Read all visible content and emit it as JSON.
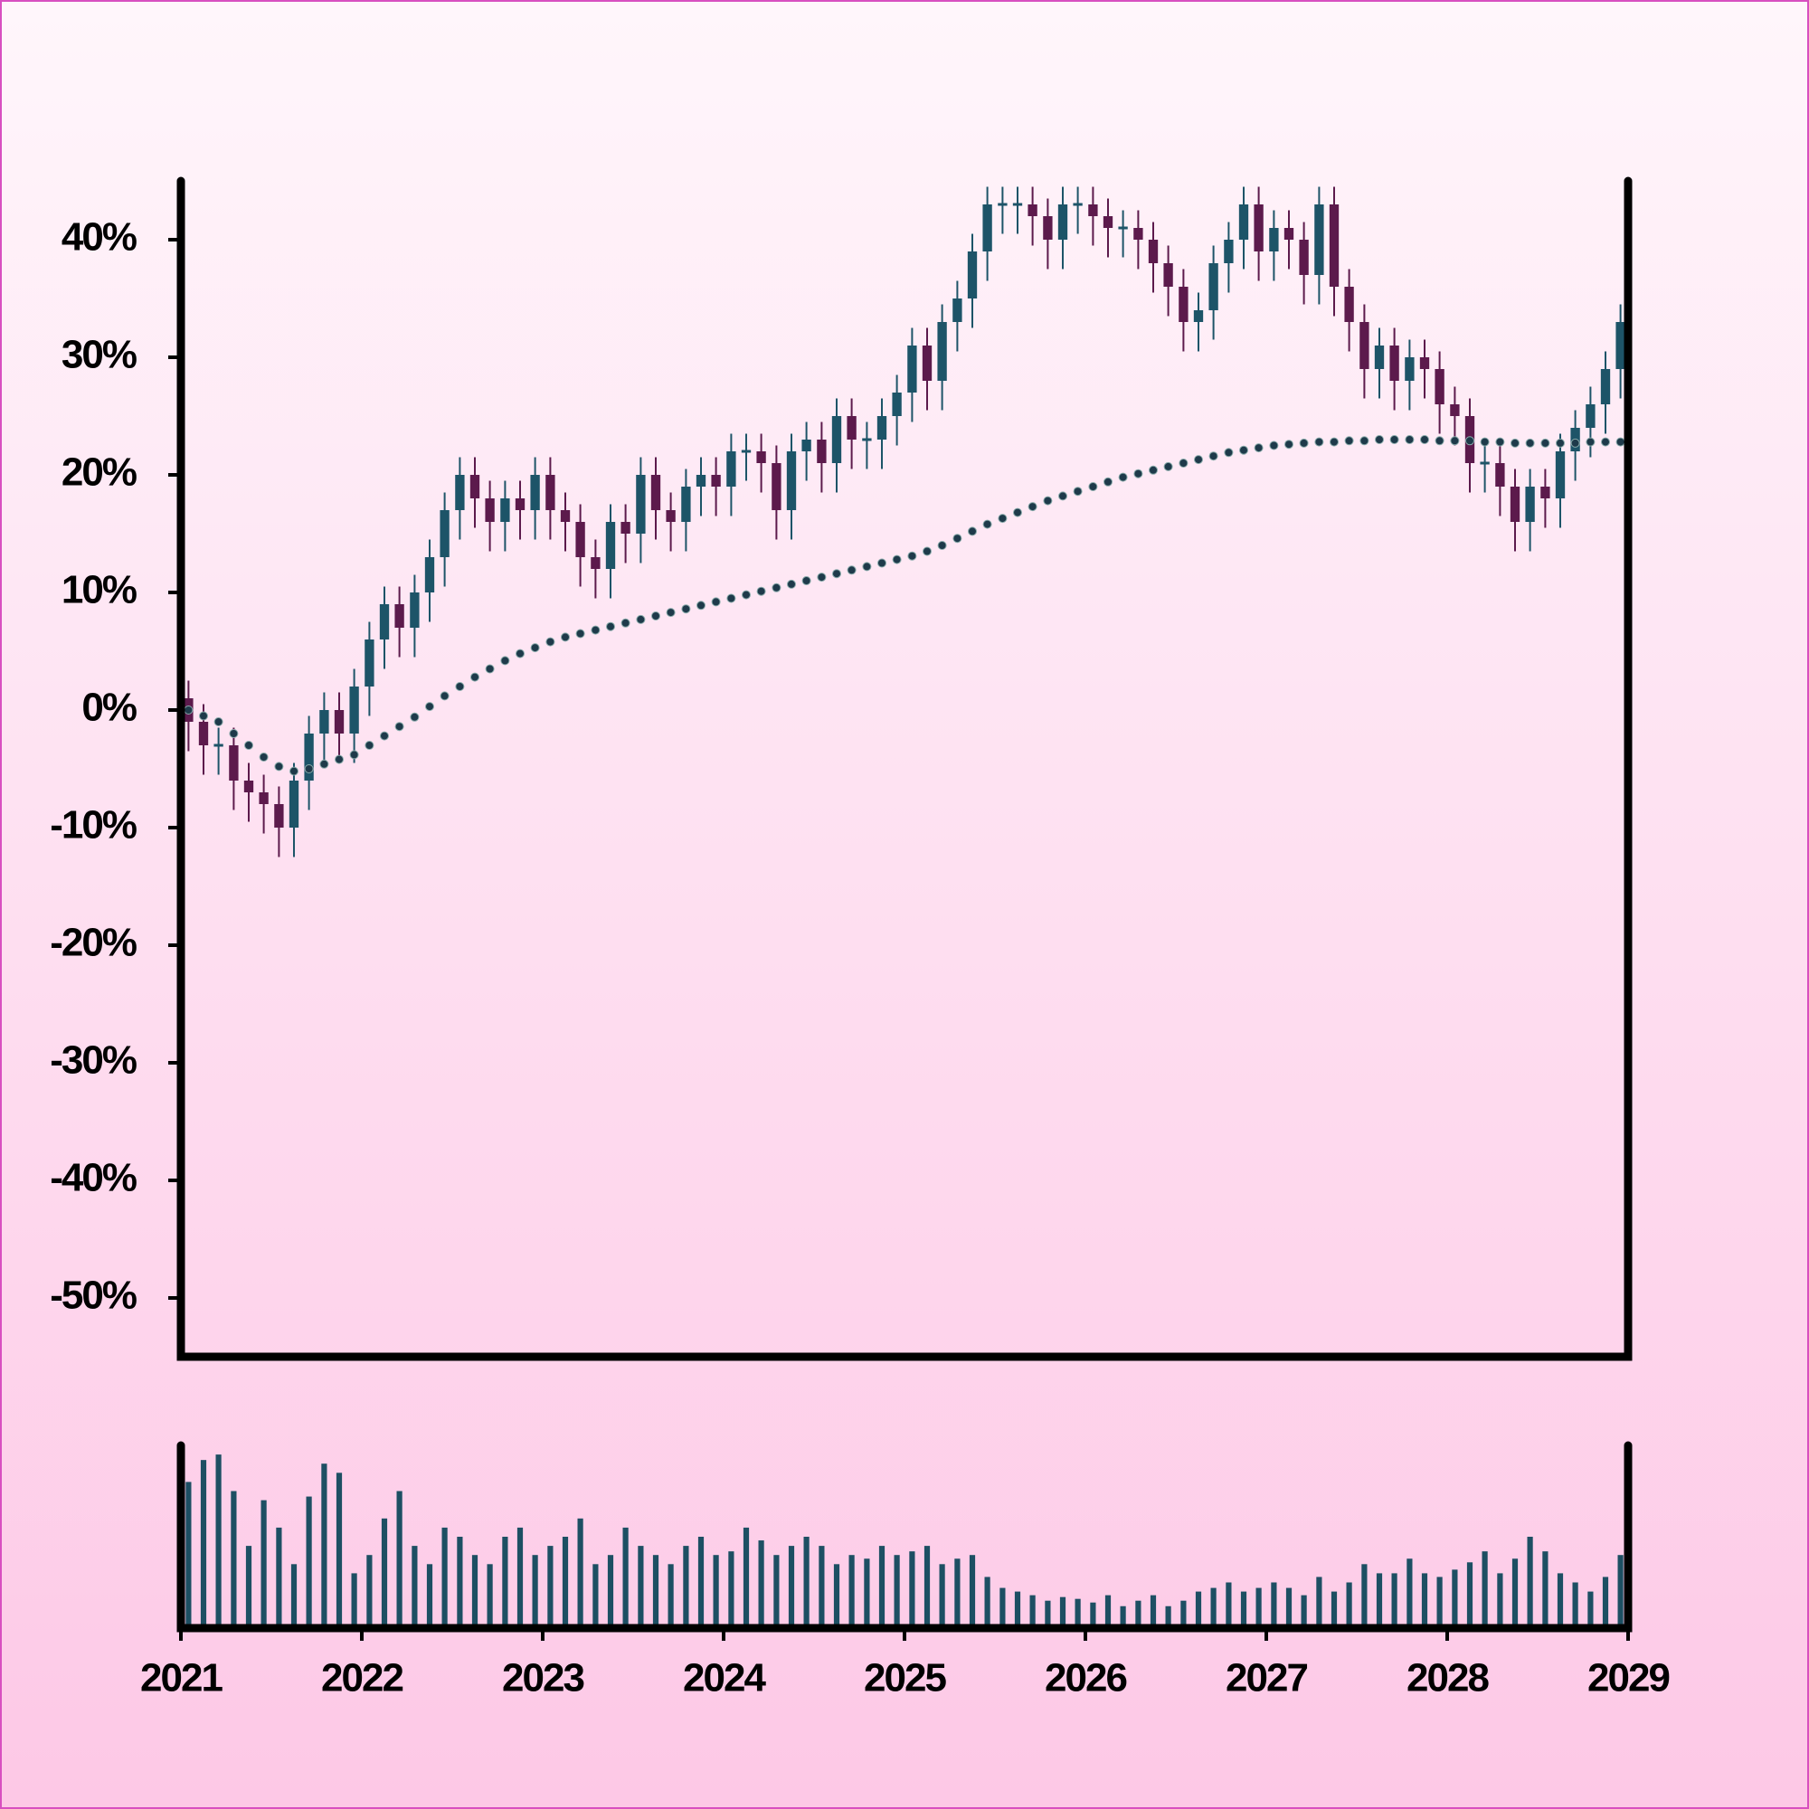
{
  "chart_data": {
    "type": "candlestick",
    "x": [
      2021.042,
      2021.125,
      2021.208,
      2021.292,
      2021.375,
      2021.458,
      2021.542,
      2021.625,
      2021.708,
      2021.792,
      2021.875,
      2021.958,
      2022.042,
      2022.125,
      2022.208,
      2022.292,
      2022.375,
      2022.458,
      2022.542,
      2022.625,
      2022.708,
      2022.792,
      2022.875,
      2022.958,
      2023.042,
      2023.125,
      2023.208,
      2023.292,
      2023.375,
      2023.458,
      2023.542,
      2023.625,
      2023.708,
      2023.792,
      2023.875,
      2023.958,
      2024.042,
      2024.125,
      2024.208,
      2024.292,
      2024.375,
      2024.458,
      2024.542,
      2024.625,
      2024.708,
      2024.792,
      2024.875,
      2024.958,
      2025.042,
      2025.125,
      2025.208,
      2025.292,
      2025.375,
      2025.458,
      2025.542,
      2025.625,
      2025.708,
      2025.792,
      2025.875,
      2025.958,
      2026.042,
      2026.125,
      2026.208,
      2026.292,
      2026.375,
      2026.458,
      2026.542,
      2026.625,
      2026.708,
      2026.792,
      2026.875,
      2026.958,
      2027.042,
      2027.125,
      2027.208,
      2027.292,
      2027.375,
      2027.458,
      2027.542,
      2027.625,
      2027.708,
      2027.792,
      2027.875,
      2027.958,
      2028.042,
      2028.125,
      2028.208,
      2028.292,
      2028.375,
      2028.458,
      2028.542,
      2028.625,
      2028.708,
      2028.792,
      2028.875,
      2028.958
    ],
    "open": [
      1,
      -1,
      -3,
      -3,
      -6,
      -7,
      -8,
      -10,
      -6,
      -2,
      0,
      -2,
      2,
      6,
      9,
      7,
      10,
      13,
      17,
      20,
      18,
      16,
      18,
      17,
      20,
      17,
      16,
      13,
      12,
      16,
      15,
      20,
      17,
      16,
      19,
      20,
      19,
      22,
      22,
      21,
      17,
      22,
      23,
      21,
      25,
      23,
      23,
      25,
      27,
      31,
      28,
      33,
      35,
      39,
      43,
      43,
      43,
      42,
      40,
      43,
      43,
      42,
      41,
      41,
      40,
      38,
      36,
      33,
      34,
      38,
      40,
      43,
      39,
      41,
      40,
      37,
      43,
      36,
      33,
      29,
      31,
      28,
      30,
      29,
      26,
      25,
      21,
      21,
      19,
      16,
      19,
      18,
      22,
      24,
      26,
      29
    ],
    "high": [
      2.5,
      0.5,
      -1.5,
      -1.5,
      -4.5,
      -5.5,
      -6.5,
      -4.5,
      -0.5,
      1.5,
      1.5,
      3.5,
      7.5,
      10.5,
      10.5,
      11.5,
      14.5,
      18.5,
      21.5,
      21.5,
      19.5,
      19.5,
      19.5,
      21.5,
      21.5,
      18.5,
      17.5,
      14.5,
      17.5,
      17.5,
      21.5,
      21.5,
      18.5,
      20.5,
      21.5,
      21.5,
      23.5,
      23.5,
      23.5,
      22.5,
      23.5,
      24.5,
      24.5,
      26.5,
      26.5,
      24.5,
      26.5,
      28.5,
      32.5,
      32.5,
      34.5,
      36.5,
      40.5,
      44.5,
      44.5,
      44.5,
      44.5,
      43.5,
      44.5,
      44.5,
      44.5,
      43.5,
      42.5,
      42.5,
      41.5,
      39.5,
      37.5,
      35.5,
      39.5,
      41.5,
      44.5,
      44.5,
      42.5,
      42.5,
      41.5,
      44.5,
      44.5,
      37.5,
      34.5,
      32.5,
      32.5,
      31.5,
      31.5,
      30.5,
      27.5,
      26.5,
      22.5,
      22.5,
      20.5,
      20.5,
      20.5,
      23.5,
      25.5,
      27.5,
      30.5,
      34.5
    ],
    "low": [
      -3.5,
      -5.5,
      -5.5,
      -8.5,
      -9.5,
      -10.5,
      -12.5,
      -12.5,
      -8.5,
      -4.5,
      -4.5,
      -4.5,
      -0.5,
      3.5,
      4.5,
      4.5,
      7.5,
      10.5,
      14.5,
      15.5,
      13.5,
      13.5,
      14.5,
      14.5,
      14.5,
      13.5,
      10.5,
      9.5,
      9.5,
      12.5,
      12.5,
      14.5,
      13.5,
      13.5,
      16.5,
      16.5,
      16.5,
      19.5,
      18.5,
      14.5,
      14.5,
      19.5,
      18.5,
      18.5,
      20.5,
      20.5,
      20.5,
      22.5,
      24.5,
      25.5,
      25.5,
      30.5,
      32.5,
      36.5,
      40.5,
      40.5,
      39.5,
      37.5,
      37.5,
      40.5,
      39.5,
      38.5,
      38.5,
      37.5,
      35.5,
      33.5,
      30.5,
      30.5,
      31.5,
      35.5,
      37.5,
      36.5,
      36.5,
      37.5,
      34.5,
      34.5,
      33.5,
      30.5,
      26.5,
      26.5,
      25.5,
      25.5,
      26.5,
      23.5,
      22.5,
      18.5,
      18.5,
      16.5,
      13.5,
      13.5,
      15.5,
      15.5,
      19.5,
      21.5,
      23.5,
      26.5
    ],
    "close": [
      -1,
      -3,
      -3,
      -6,
      -7,
      -8,
      -10,
      -6,
      -2,
      0,
      -2,
      2,
      6,
      9,
      7,
      10,
      13,
      17,
      20,
      18,
      16,
      18,
      17,
      20,
      17,
      16,
      13,
      12,
      16,
      15,
      20,
      17,
      16,
      19,
      20,
      19,
      22,
      22,
      21,
      17,
      22,
      23,
      21,
      25,
      23,
      23,
      25,
      27,
      31,
      28,
      33,
      35,
      39,
      43,
      43,
      43,
      42,
      40,
      43,
      43,
      42,
      41,
      41,
      40,
      38,
      36,
      33,
      34,
      38,
      40,
      43,
      39,
      41,
      40,
      37,
      43,
      36,
      33,
      29,
      31,
      28,
      30,
      29,
      26,
      25,
      21,
      21,
      19,
      16,
      19,
      18,
      22,
      24,
      26,
      29,
      33
    ],
    "ma_values": [
      0,
      -0.5,
      -1,
      -2,
      -3,
      -4,
      -4.8,
      -5.2,
      -5,
      -4.6,
      -4.2,
      -3.8,
      -3,
      -2.2,
      -1.4,
      -0.6,
      0.3,
      1.2,
      2,
      2.8,
      3.5,
      4.2,
      4.8,
      5.3,
      5.8,
      6.2,
      6.5,
      6.8,
      7.1,
      7.4,
      7.7,
      8,
      8.3,
      8.6,
      8.9,
      9.2,
      9.5,
      9.8,
      10.1,
      10.4,
      10.7,
      11,
      11.3,
      11.6,
      11.9,
      12.2,
      12.5,
      12.8,
      13.1,
      13.5,
      14,
      14.6,
      15.2,
      15.8,
      16.3,
      16.8,
      17.3,
      17.8,
      18.2,
      18.6,
      19,
      19.4,
      19.8,
      20.1,
      20.4,
      20.7,
      21,
      21.3,
      21.6,
      21.9,
      22.1,
      22.3,
      22.5,
      22.6,
      22.7,
      22.8,
      22.8,
      22.9,
      22.9,
      23,
      23,
      23,
      23,
      22.9,
      22.9,
      22.9,
      22.8,
      22.8,
      22.7,
      22.7,
      22.7,
      22.7,
      22.7,
      22.8,
      22.8,
      22.8
    ],
    "volume": [
      80,
      92,
      95,
      75,
      45,
      70,
      55,
      35,
      72,
      90,
      85,
      30,
      40,
      60,
      75,
      45,
      35,
      55,
      50,
      40,
      35,
      50,
      55,
      40,
      45,
      50,
      60,
      35,
      40,
      55,
      45,
      40,
      35,
      45,
      50,
      40,
      42,
      55,
      48,
      40,
      45,
      50,
      45,
      35,
      40,
      38,
      45,
      40,
      42,
      45,
      35,
      38,
      40,
      28,
      22,
      20,
      18,
      15,
      17,
      16,
      14,
      18,
      12,
      15,
      18,
      12,
      15,
      20,
      22,
      25,
      20,
      22,
      25,
      22,
      18,
      28,
      20,
      25,
      35,
      30,
      30,
      38,
      30,
      28,
      32,
      36,
      42,
      30,
      38,
      50,
      42,
      30,
      25,
      20,
      28,
      40
    ],
    "up_color": "#1d5468",
    "down_color": "#5c1a4c",
    "ma_color": "#1e3a4a",
    "volume_color": "#1d4f63",
    "xlim": [
      2021,
      2029
    ],
    "xticks": [
      2021,
      2022,
      2023,
      2024,
      2025,
      2026,
      2027,
      2028,
      2029
    ],
    "ylim": [
      -55,
      45
    ],
    "yticks": [
      {
        "value": -50,
        "label": "-50%"
      },
      {
        "value": -40,
        "label": "-40%"
      },
      {
        "value": -30,
        "label": "-30%"
      },
      {
        "value": -20,
        "label": "-20%"
      },
      {
        "value": -10,
        "label": "-10%"
      },
      {
        "value": 0,
        "label": "0%"
      },
      {
        "value": 10,
        "label": "10%"
      },
      {
        "value": 20,
        "label": "20%"
      },
      {
        "value": 30,
        "label": "30%"
      },
      {
        "value": 40,
        "label": "40%"
      }
    ],
    "vlim": [
      0,
      100
    ]
  }
}
